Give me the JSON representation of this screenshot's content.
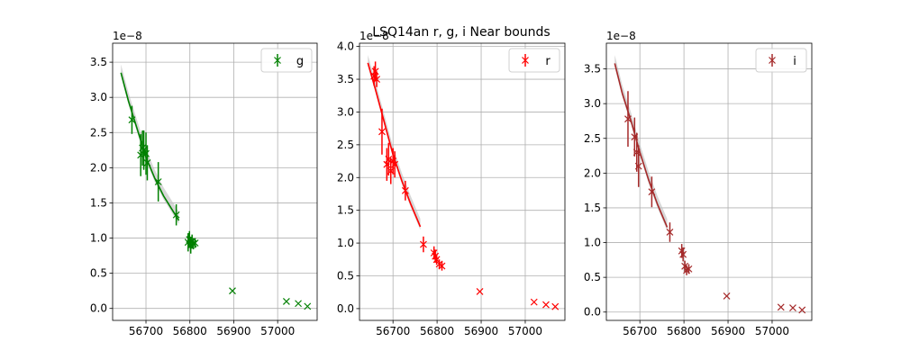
{
  "title": "LSQ14an  r, g, i Near bounds",
  "chart_data": [
    {
      "type": "scatter",
      "band": "g",
      "color": "#008000",
      "scale_label": "1e−8",
      "xlim": [
        56624,
        57090
      ],
      "ylim": [
        -0.17,
        3.77
      ],
      "xticks": [
        56700,
        56800,
        56900,
        57000
      ],
      "yticks": [
        0.0,
        0.5,
        1.0,
        1.5,
        2.0,
        2.5,
        3.0,
        3.5
      ],
      "grid": true,
      "legend": {
        "position": "top-right",
        "entries": [
          "g"
        ]
      },
      "series": [
        {
          "name": "g",
          "x": [
            56668,
            56688,
            56692,
            56695,
            56700,
            56703,
            56728,
            56769,
            56796,
            56799,
            56802,
            56805,
            56808,
            56812,
            56897,
            57020,
            57047,
            57068
          ],
          "y": [
            2.68,
            2.18,
            2.28,
            2.25,
            2.2,
            2.07,
            1.8,
            1.33,
            0.94,
            0.98,
            0.9,
            0.95,
            0.92,
            0.93,
            0.25,
            0.1,
            0.07,
            0.03
          ],
          "yerr": [
            0.2,
            0.3,
            0.25,
            0.28,
            0.3,
            0.25,
            0.28,
            0.15,
            0.13,
            0.12,
            0.12,
            0.1,
            0.08,
            0.07,
            null,
            null,
            null,
            null
          ]
        }
      ],
      "fit": {
        "x": [
          56643,
          56660,
          56680,
          56700,
          56720,
          56740,
          56760,
          56775
        ],
        "y": [
          3.35,
          2.95,
          2.55,
          2.15,
          1.85,
          1.6,
          1.4,
          1.25
        ]
      }
    },
    {
      "type": "scatter",
      "band": "r",
      "color": "#ff0000",
      "scale_label": "1e−8",
      "xlim": [
        56624,
        57090
      ],
      "ylim": [
        -0.18,
        4.05
      ],
      "xticks": [
        56700,
        56800,
        56900,
        57000
      ],
      "yticks": [
        0.0,
        0.5,
        1.0,
        1.5,
        2.0,
        2.5,
        3.0,
        3.5,
        4.0
      ],
      "grid": true,
      "legend": {
        "position": "top-right",
        "entries": [
          "r"
        ]
      },
      "series": [
        {
          "name": "r",
          "x": [
            56657,
            56660,
            56663,
            56675,
            56686,
            56690,
            56695,
            56700,
            56704,
            56728,
            56769,
            56793,
            56796,
            56799,
            56805,
            56811,
            56897,
            57020,
            57047,
            57068
          ],
          "y": [
            3.55,
            3.62,
            3.5,
            2.7,
            2.2,
            2.28,
            2.1,
            2.25,
            2.2,
            1.8,
            0.98,
            0.85,
            0.8,
            0.75,
            0.68,
            0.65,
            0.26,
            0.1,
            0.06,
            0.03
          ],
          "yerr": [
            0.15,
            0.15,
            0.12,
            0.35,
            0.25,
            0.25,
            0.2,
            0.2,
            0.2,
            0.15,
            0.12,
            0.1,
            0.1,
            0.08,
            0.07,
            0.07,
            null,
            null,
            null,
            null
          ]
        }
      ],
      "fit": {
        "x": [
          56643,
          56660,
          56680,
          56700,
          56720,
          56740,
          56762
        ],
        "y": [
          3.75,
          3.35,
          2.85,
          2.35,
          1.95,
          1.6,
          1.25
        ]
      }
    },
    {
      "type": "scatter",
      "band": "i",
      "color": "#a52a2a",
      "scale_label": "1e−8",
      "xlim": [
        56624,
        57090
      ],
      "ylim": [
        -0.12,
        3.87
      ],
      "xticks": [
        56700,
        56800,
        56900,
        57000
      ],
      "yticks": [
        0.0,
        0.5,
        1.0,
        1.5,
        2.0,
        2.5,
        3.0,
        3.5
      ],
      "grid": true,
      "legend": {
        "position": "top-right",
        "entries": [
          "i"
        ]
      },
      "series": [
        {
          "name": "i",
          "x": [
            56673,
            56688,
            56693,
            56697,
            56727,
            56768,
            56795,
            56798,
            56802,
            56806,
            56811,
            56897,
            57020,
            57047,
            57068
          ],
          "y": [
            2.78,
            2.52,
            2.3,
            2.1,
            1.73,
            1.15,
            0.88,
            0.83,
            0.66,
            0.6,
            0.62,
            0.23,
            0.07,
            0.06,
            0.03
          ],
          "yerr": [
            0.4,
            0.28,
            0.28,
            0.3,
            0.22,
            0.14,
            0.1,
            0.1,
            0.08,
            0.07,
            0.07,
            null,
            null,
            null,
            null
          ]
        }
      ],
      "fit": {
        "x": [
          56643,
          56660,
          56680,
          56700,
          56720,
          56740,
          56762
        ],
        "y": [
          3.58,
          3.15,
          2.75,
          2.3,
          1.9,
          1.55,
          1.22
        ]
      }
    }
  ]
}
